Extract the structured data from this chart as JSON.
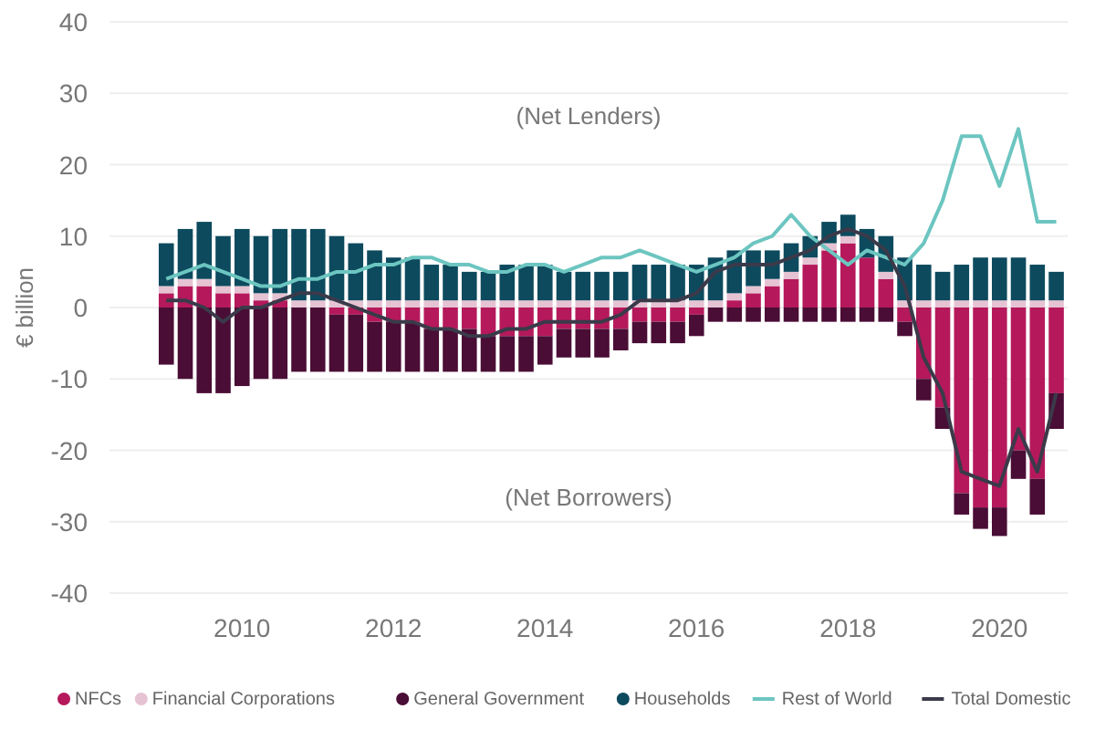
{
  "chart_data": {
    "type": "bar",
    "stacked": true,
    "ylabel": "€ billion",
    "annotations": [
      "(Net Lenders)",
      "(Net Borrowers)"
    ],
    "x": [
      2009,
      2009.25,
      2009.5,
      2009.75,
      2010,
      2010.25,
      2010.5,
      2010.75,
      2011,
      2011.25,
      2011.5,
      2011.75,
      2012,
      2012.25,
      2012.5,
      2012.75,
      2013,
      2013.25,
      2013.5,
      2013.75,
      2014,
      2014.25,
      2014.5,
      2014.75,
      2015,
      2015.25,
      2015.5,
      2015.75,
      2016,
      2016.25,
      2016.5,
      2016.75,
      2017,
      2017.25,
      2017.5,
      2017.75,
      2018,
      2018.25,
      2018.5,
      2018.75,
      2019,
      2019.25,
      2019.5,
      2019.75,
      2020,
      2020.25,
      2020.5,
      2020.75
    ],
    "xlim": [
      2008.25,
      2020.9
    ],
    "xticks": [
      2010,
      2012,
      2014,
      2016,
      2018,
      2020
    ],
    "ylim": [
      -40,
      40
    ],
    "yticks": [
      -40,
      -30,
      -20,
      -10,
      0,
      10,
      20,
      30,
      40
    ],
    "grid": "y",
    "legend": "bottom",
    "series": [
      {
        "name": "NFCs",
        "color": "#b5195b",
        "values": [
          2,
          3,
          3,
          2,
          2,
          1,
          1,
          0,
          0,
          -1,
          -1,
          -2,
          -2,
          -2,
          -3,
          -3,
          -3,
          -4,
          -4,
          -4,
          -4,
          -3,
          -3,
          -3,
          -3,
          -2,
          -2,
          -2,
          -1,
          0,
          1,
          2,
          3,
          4,
          6,
          8,
          9,
          7,
          4,
          -2,
          -10,
          -14,
          -26,
          -28,
          -28,
          -20,
          -24,
          -12
        ]
      },
      {
        "name": "Financial Corporations",
        "color": "#e6c3d3",
        "values": [
          1,
          1,
          1,
          1,
          1,
          1,
          1,
          1,
          1,
          1,
          1,
          1,
          1,
          1,
          1,
          1,
          1,
          1,
          1,
          1,
          1,
          1,
          1,
          1,
          1,
          1,
          1,
          1,
          1,
          1,
          1,
          1,
          1,
          1,
          1,
          1,
          1,
          null,
          1,
          1,
          1,
          1,
          1,
          1,
          1,
          1,
          1,
          1
        ]
      },
      {
        "name": "General Government",
        "color": "#4a0d35",
        "values": [
          -8,
          -10,
          -12,
          -12,
          -11,
          -10,
          -10,
          -9,
          -9,
          -8,
          -8,
          -7,
          -7,
          -7,
          -6,
          -6,
          -6,
          -5,
          -5,
          -5,
          -4,
          -4,
          -4,
          -4,
          -3,
          -3,
          -3,
          -3,
          -3,
          -2,
          -2,
          -2,
          -2,
          -2,
          -2,
          -2,
          -2,
          -2,
          -2,
          -2,
          -3,
          -3,
          -3,
          -3,
          -4,
          -4,
          -5,
          -5
        ]
      },
      {
        "name": "Households",
        "color": "#0d4a5e",
        "values": [
          6,
          7,
          8,
          7,
          8,
          8,
          9,
          10,
          10,
          9,
          8,
          7,
          6,
          6,
          5,
          5,
          4,
          4,
          5,
          5,
          5,
          4,
          4,
          4,
          4,
          5,
          5,
          5,
          5,
          6,
          6,
          5,
          4,
          4,
          3,
          3,
          3,
          4,
          5,
          6,
          5,
          4,
          5,
          6,
          6,
          6,
          5,
          4
        ]
      },
      {
        "name": "Rest of World",
        "type": "line",
        "color": "#6cc5c0",
        "values": [
          4,
          5,
          6,
          5,
          4,
          3,
          3,
          4,
          4,
          5,
          5,
          6,
          6,
          7,
          7,
          6,
          6,
          5,
          5,
          6,
          6,
          5,
          6,
          7,
          7,
          8,
          7,
          6,
          5,
          6,
          7,
          9,
          10,
          13,
          10,
          8,
          6,
          8,
          7,
          6,
          9,
          15,
          24,
          24,
          17,
          25,
          12,
          12
        ]
      },
      {
        "name": "Total Domestic",
        "type": "line",
        "color": "#3a3a4a",
        "values": [
          1,
          1,
          0,
          -2,
          0,
          0,
          1,
          2,
          2,
          1,
          0,
          -1,
          -2,
          -2,
          -3,
          -3,
          -4,
          -4,
          -3,
          -3,
          -2,
          -2,
          -2,
          -2,
          -1,
          1,
          1,
          1,
          2,
          5,
          6,
          6,
          6,
          7,
          8,
          10,
          11,
          10,
          8,
          3,
          -7,
          -12,
          -23,
          -24,
          -25,
          -17,
          -23,
          -12
        ]
      }
    ]
  }
}
